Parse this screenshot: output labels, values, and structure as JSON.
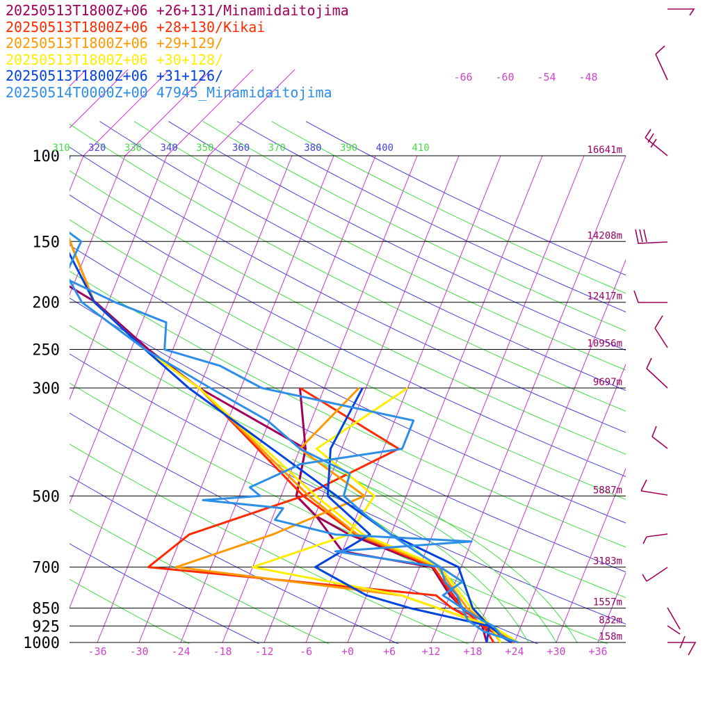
{
  "chart_data": {
    "type": "line",
    "chart_kind": "skew-T log-P sounding",
    "x_unit_label": "temperature (°C)",
    "xlim": [
      -42,
      42
    ],
    "pressure_range": [
      100,
      1000
    ],
    "pressure_levels": [
      100,
      150,
      200,
      250,
      300,
      500,
      700,
      850,
      925,
      1000
    ],
    "pressure_labels": [
      "100",
      "150",
      "200",
      "250",
      "300",
      "500",
      "700",
      "850",
      "925",
      "1000"
    ],
    "height_labels": [
      "16641m",
      "14208m",
      "12417m",
      "10956m",
      "9697m",
      "5887m",
      "3183m",
      "1557m",
      "832m",
      "158m"
    ],
    "x_ticks": [
      "-36",
      "-30",
      "-24",
      "-18",
      "-12",
      "-6",
      "+0",
      "+6",
      "+12",
      "+18",
      "+24",
      "+30",
      "+36"
    ],
    "x_tick_values": [
      -36,
      -30,
      -24,
      -18,
      -12,
      -6,
      0,
      6,
      12,
      18,
      24,
      30,
      36
    ],
    "isotherm_labels": [
      "-66",
      "-60",
      "-54",
      "-48"
    ],
    "theta_labels": [
      "310",
      "320",
      "330",
      "340",
      "350",
      "360",
      "370",
      "380",
      "390",
      "400",
      "410"
    ],
    "series": [
      {
        "name": "20250513T1800Z+06 +26+131/Minamidaitojima",
        "color": "#a0005a",
        "temperature": [
          [
            1000,
            23.6
          ],
          [
            925,
            18.4
          ],
          [
            850,
            14.6
          ],
          [
            700,
            7.8
          ],
          [
            600,
            -6
          ],
          [
            550,
            -11.8
          ],
          [
            500,
            -15.8
          ],
          [
            400,
            -17.2
          ],
          [
            300,
            -36
          ],
          [
            250,
            -45.5
          ],
          [
            200,
            -55.8
          ],
          [
            170,
            -66
          ],
          [
            150,
            -64
          ],
          [
            120,
            -67
          ],
          [
            100,
            -70
          ]
        ],
        "dewpoint": [
          [
            1000,
            20
          ],
          [
            925,
            18.4
          ],
          [
            850,
            14.6
          ],
          [
            800,
            12
          ],
          [
            700,
            7.8
          ],
          [
            650,
            -6
          ],
          [
            550,
            -11.8
          ],
          [
            500,
            -15.8
          ],
          [
            400,
            -17.2
          ],
          [
            300,
            -21.5
          ]
        ]
      },
      {
        "name": "20250513T1800Z+06 +28+130/Kikai",
        "color": "#ff2a00",
        "temperature": [
          [
            1000,
            24
          ],
          [
            925,
            18.6
          ],
          [
            850,
            14.4
          ],
          [
            700,
            8
          ],
          [
            600,
            -5
          ],
          [
            500,
            -14.8
          ],
          [
            300,
            -36
          ],
          [
            250,
            -46
          ],
          [
            200,
            -56
          ],
          [
            150,
            -63
          ],
          [
            120,
            -68
          ],
          [
            100,
            -70
          ]
        ],
        "dewpoint": [
          [
            1000,
            21
          ],
          [
            925,
            18.6
          ],
          [
            850,
            13
          ],
          [
            800,
            10
          ],
          [
            700,
            -33
          ],
          [
            600,
            -29
          ],
          [
            500,
            -14.8
          ],
          [
            400,
            -3.8
          ],
          [
            300,
            -21.5
          ]
        ]
      },
      {
        "name": "20250513T1800Z+06 +29+129/",
        "color": "#ff9900",
        "temperature": [
          [
            1000,
            24.5
          ],
          [
            925,
            19.4
          ],
          [
            850,
            15.2
          ],
          [
            700,
            8.6
          ],
          [
            600,
            -4.8
          ],
          [
            500,
            -14
          ],
          [
            300,
            -36
          ],
          [
            250,
            -46
          ],
          [
            200,
            -56
          ],
          [
            150,
            -63
          ],
          [
            120,
            -68
          ],
          [
            100,
            -70
          ]
        ],
        "dewpoint": [
          [
            1000,
            22
          ],
          [
            925,
            19.4
          ],
          [
            850,
            11
          ],
          [
            800,
            5
          ],
          [
            700,
            -29
          ],
          [
            600,
            -17
          ],
          [
            500,
            -6
          ],
          [
            400,
            -18
          ],
          [
            300,
            -13
          ]
        ]
      },
      {
        "name": "20250513T1800Z+06 +30+128/",
        "color": "#ffee00",
        "temperature": [
          [
            1000,
            24.5
          ],
          [
            925,
            19.8
          ],
          [
            850,
            15.8
          ],
          [
            700,
            9
          ],
          [
            600,
            -4
          ],
          [
            500,
            -13
          ],
          [
            300,
            -36
          ],
          [
            250,
            -46
          ],
          [
            200,
            -56
          ],
          [
            150,
            -64
          ],
          [
            120,
            -68
          ],
          [
            100,
            -70
          ]
        ],
        "dewpoint": [
          [
            1000,
            22
          ],
          [
            925,
            19.8
          ],
          [
            850,
            11
          ],
          [
            800,
            5
          ],
          [
            700,
            -18
          ],
          [
            600,
            -6
          ],
          [
            500,
            -4.6
          ],
          [
            400,
            -15.6
          ],
          [
            300,
            -6
          ]
        ]
      },
      {
        "name": "20250513T1800Z+06 +31+126/",
        "color": "#0044dd",
        "temperature": [
          [
            1000,
            23.5
          ],
          [
            925,
            19.4
          ],
          [
            850,
            16
          ],
          [
            700,
            11.6
          ],
          [
            600,
            0
          ],
          [
            500,
            -10
          ],
          [
            300,
            -37.5
          ],
          [
            250,
            -46
          ],
          [
            200,
            -56
          ],
          [
            150,
            -64
          ],
          [
            120,
            -67
          ],
          [
            100,
            -68
          ]
        ],
        "dewpoint": [
          [
            1000,
            20
          ],
          [
            925,
            19.4
          ],
          [
            850,
            7
          ],
          [
            800,
            0
          ],
          [
            700,
            -9
          ],
          [
            600,
            -3
          ],
          [
            500,
            -11.3
          ],
          [
            400,
            -13.6
          ],
          [
            300,
            -12.5
          ]
        ]
      },
      {
        "name": "20250514T0000Z+00 47945_Minamidaitojima",
        "color": "#2d8ee8",
        "temperature": [
          [
            1000,
            24.5
          ],
          [
            975,
            22
          ],
          [
            925,
            20
          ],
          [
            900,
            18
          ],
          [
            850,
            14.5
          ],
          [
            800,
            13
          ],
          [
            750,
            10.5
          ],
          [
            700,
            9
          ],
          [
            650,
            4.5
          ],
          [
            600,
            0
          ],
          [
            550,
            -4.5
          ],
          [
            500,
            -9
          ],
          [
            450,
            -9.4
          ],
          [
            400,
            -18
          ],
          [
            350,
            -24.3
          ],
          [
            300,
            -34.4
          ],
          [
            250,
            -46
          ],
          [
            200,
            -57.8
          ],
          [
            175,
            -61.7
          ],
          [
            150,
            -61.4
          ],
          [
            130,
            -69
          ],
          [
            100,
            -71.5
          ]
        ],
        "dewpoint": [
          [
            1000,
            24.5
          ],
          [
            950,
            19
          ],
          [
            900,
            16
          ],
          [
            850,
            14.5
          ],
          [
            800,
            11
          ],
          [
            750,
            13
          ],
          [
            700,
            9
          ],
          [
            650,
            -7
          ],
          [
            620,
            12
          ],
          [
            600,
            -8
          ],
          [
            560,
            -17.5
          ],
          [
            530,
            -17
          ],
          [
            510,
            -29
          ],
          [
            500,
            -21
          ],
          [
            480,
            -23
          ],
          [
            430,
            -17
          ],
          [
            400,
            -3.3
          ],
          [
            350,
            -3.3
          ],
          [
            300,
            -27
          ],
          [
            270,
            -34.3
          ],
          [
            250,
            -43.2
          ],
          [
            220,
            -44.5
          ],
          [
            200,
            -53
          ],
          [
            180,
            -61
          ],
          [
            150,
            -79.6
          ],
          [
            120,
            -91.5
          ],
          [
            100,
            -90.2
          ]
        ]
      }
    ]
  }
}
